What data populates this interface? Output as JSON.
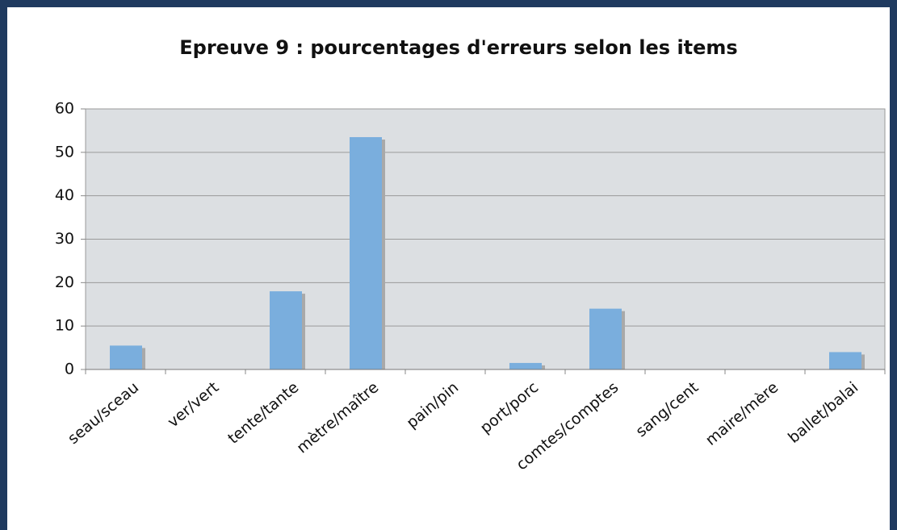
{
  "chart_data": {
    "type": "bar",
    "title": "Epreuve 9 : pourcentages d'erreurs selon les items",
    "categories": [
      "seau/sceau",
      "ver/vert",
      "tente/tante",
      "mètre/maître",
      "pain/pin",
      "port/porc",
      "comtes/comptes",
      "sang/cent",
      "maire/mère",
      "ballet/balai"
    ],
    "values": [
      5.5,
      0,
      18,
      53.5,
      0,
      1.5,
      14,
      0,
      0,
      4
    ],
    "color": "#7aaedd",
    "ylim": [
      0,
      60
    ],
    "yticks": [
      0,
      10,
      20,
      30,
      40,
      50,
      60
    ],
    "grid": true
  }
}
